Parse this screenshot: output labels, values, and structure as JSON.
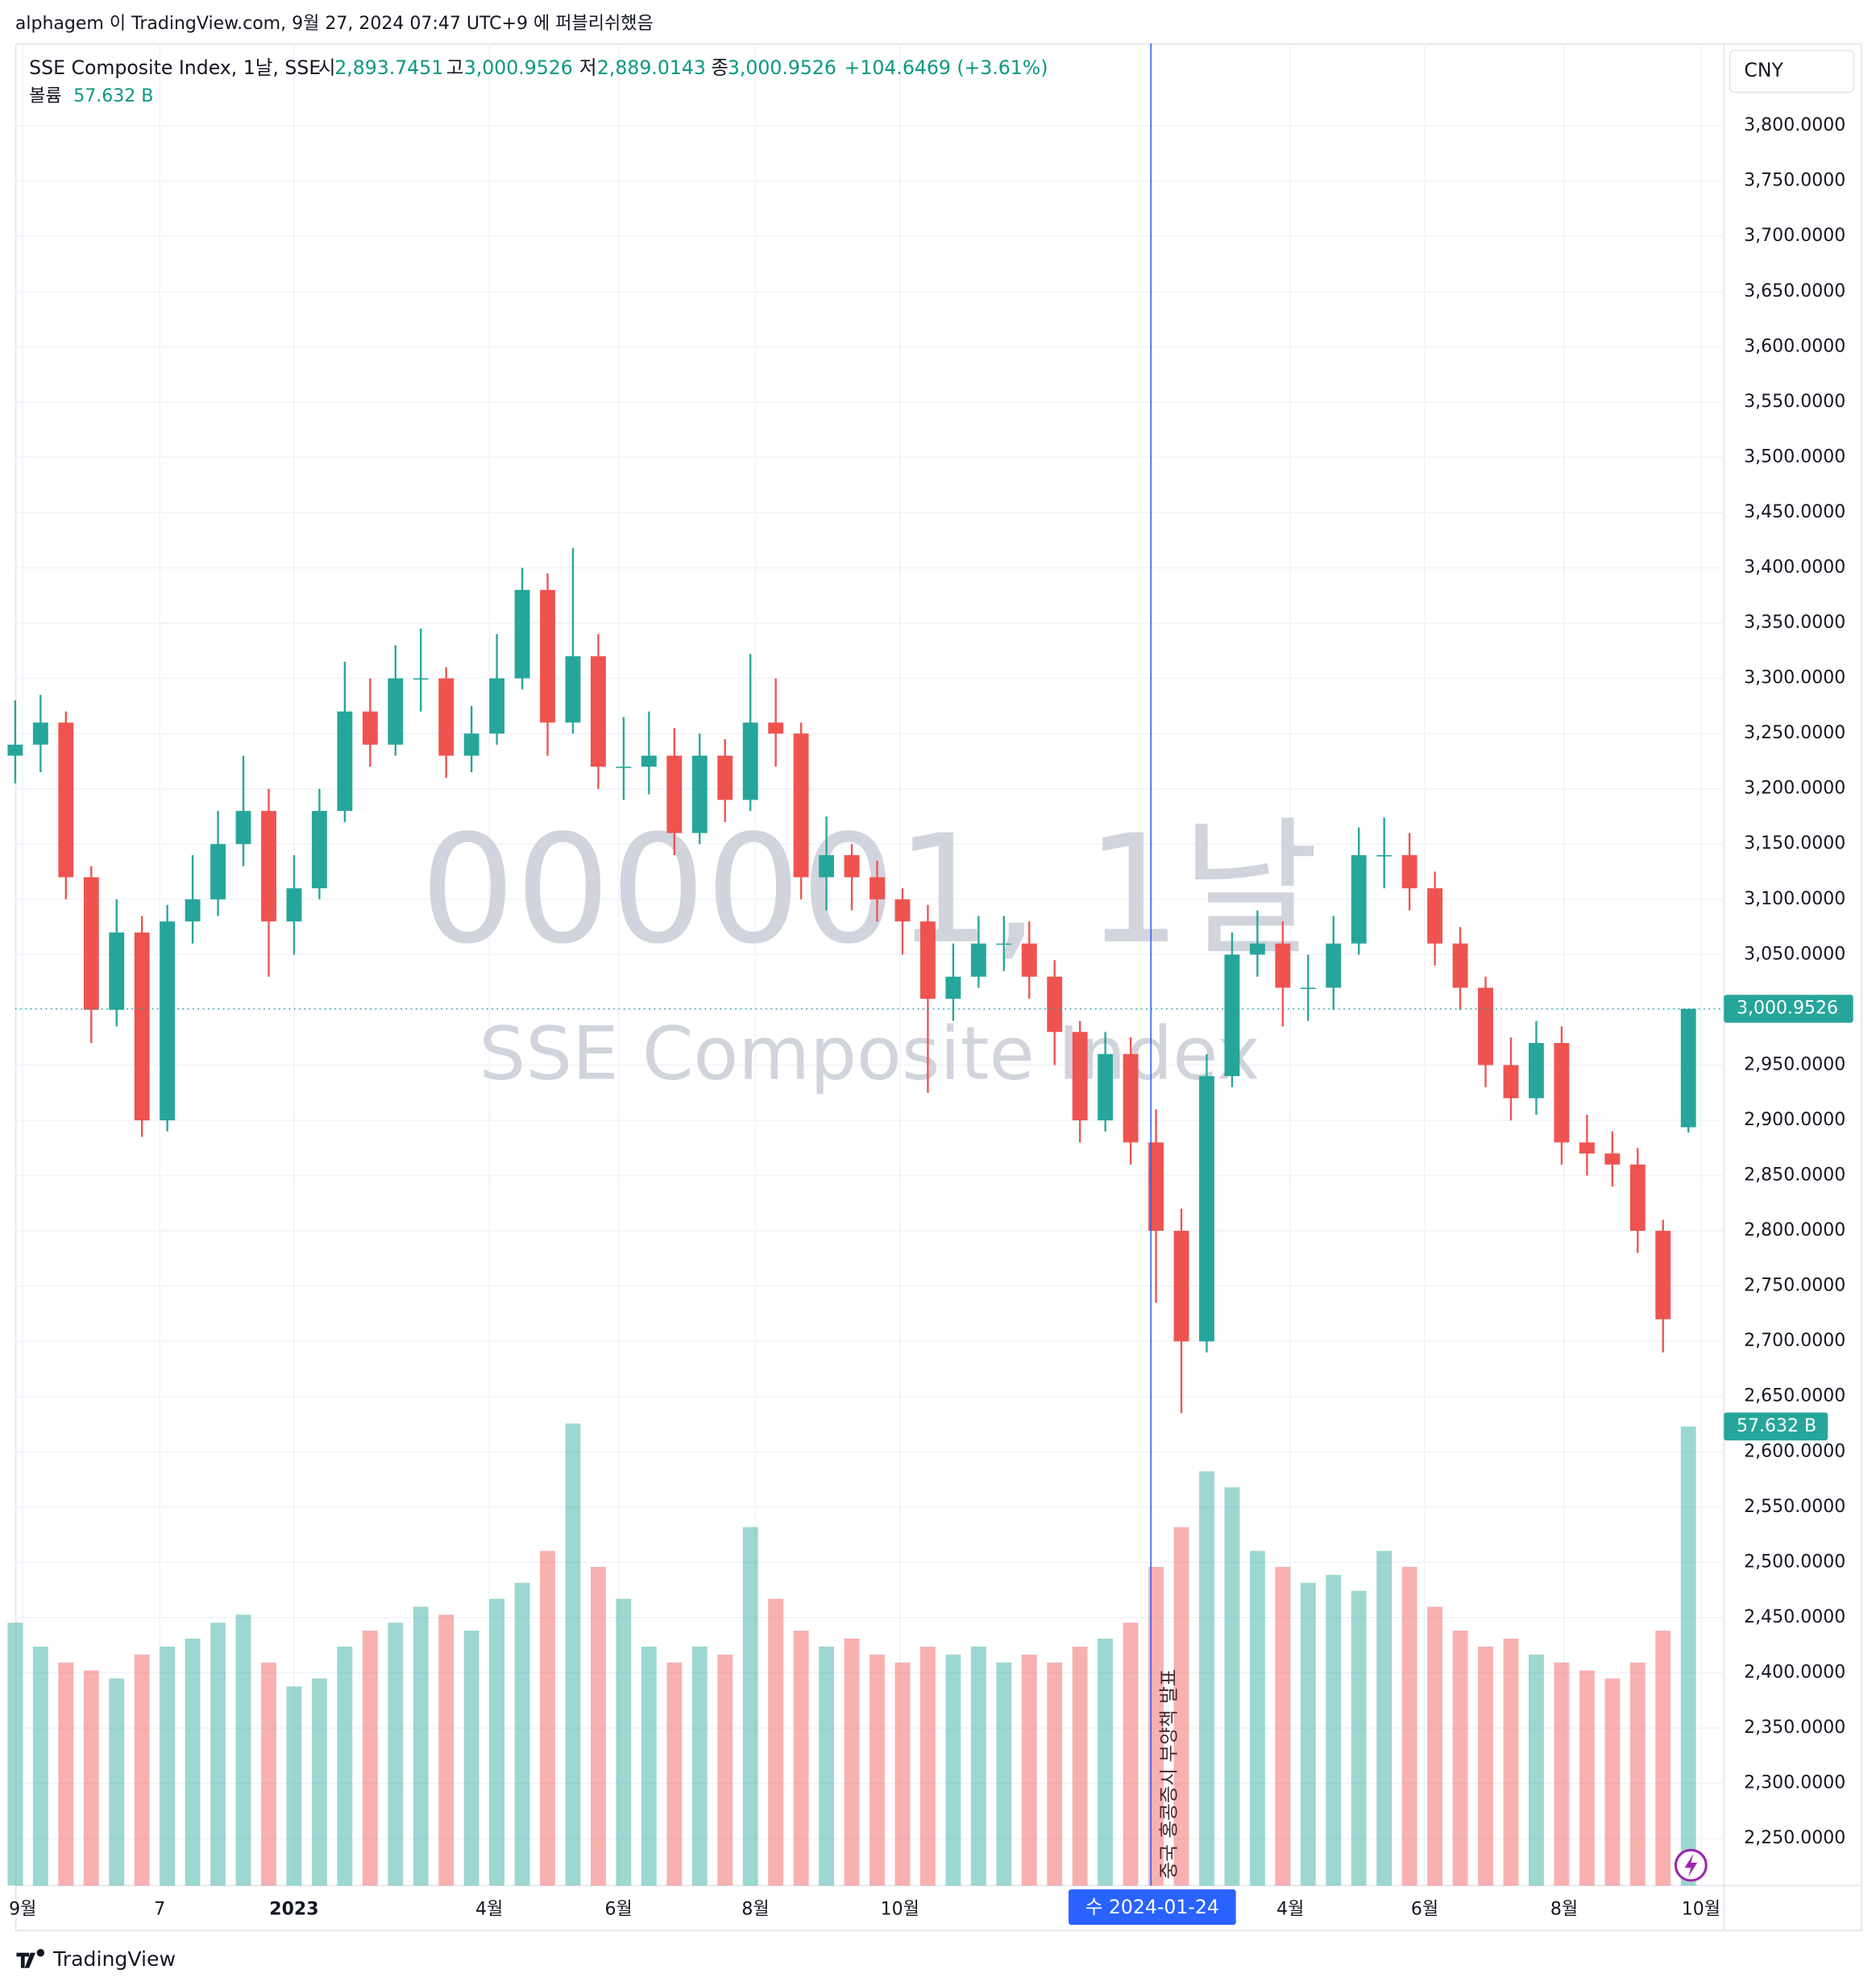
{
  "header": "alphagem 이 TradingView.com, 9월 27, 2024 07:47 UTC+9 에 퍼블리쉬했음",
  "footer": "TradingView",
  "currency": "CNY",
  "chart_data": {
    "type": "candlestick",
    "legend": {
      "symbol": "SSE Composite Index, 1날, SSE",
      "open_key": "시",
      "open": "2,893.7451",
      "high_key": "고",
      "high": "3,000.9526",
      "low_key": "저",
      "low": "2,889.0143",
      "close_key": "종",
      "close": "3,000.9526",
      "change": "+104.6469 (+3.61%)",
      "volume_key": "볼륨",
      "volume": "57.632 B"
    },
    "watermark": [
      "000001, 1날",
      "SSE Composite Index"
    ],
    "annotation": "중국 홍콩증시 부양책 발표",
    "crosshair": {
      "value": 44.8,
      "label": "수 2024-01-24"
    },
    "up_color": "#26a69a",
    "down_color": "#ef5350",
    "crosshair_color": "#2962ff",
    "grid": true,
    "ylim": [
      2207.5,
      3874.6
    ],
    "yticks": [
      {
        "value": 3800,
        "label": "3,800.0000"
      },
      {
        "value": 3750,
        "label": "3,750.0000"
      },
      {
        "value": 3700,
        "label": "3,700.0000"
      },
      {
        "value": 3650,
        "label": "3,650.0000"
      },
      {
        "value": 3600,
        "label": "3,600.0000"
      },
      {
        "value": 3550,
        "label": "3,550.0000"
      },
      {
        "value": 3500,
        "label": "3,500.0000"
      },
      {
        "value": 3450,
        "label": "3,450.0000"
      },
      {
        "value": 3400,
        "label": "3,400.0000"
      },
      {
        "value": 3350,
        "label": "3,350.0000"
      },
      {
        "value": 3300,
        "label": "3,300.0000"
      },
      {
        "value": 3250,
        "label": "3,250.0000"
      },
      {
        "value": 3200,
        "label": "3,200.0000"
      },
      {
        "value": 3150,
        "label": "3,150.0000"
      },
      {
        "value": 3100,
        "label": "3,100.0000"
      },
      {
        "value": 3050,
        "label": "3,050.0000"
      },
      {
        "value": 3000,
        "label": "3,000.0000"
      },
      {
        "value": 2950,
        "label": "2,950.0000"
      },
      {
        "value": 2900,
        "label": "2,900.0000"
      },
      {
        "value": 2850,
        "label": "2,850.0000"
      },
      {
        "value": 2800,
        "label": "2,800.0000"
      },
      {
        "value": 2750,
        "label": "2,750.0000"
      },
      {
        "value": 2700,
        "label": "2,700.0000"
      },
      {
        "value": 2650,
        "label": "2,650.0000"
      },
      {
        "value": 2600,
        "label": "2,600.0000"
      },
      {
        "value": 2550,
        "label": "2,550.0000"
      },
      {
        "value": 2500,
        "label": "2,500.0000"
      },
      {
        "value": 2450,
        "label": "2,450.0000"
      },
      {
        "value": 2400,
        "label": "2,400.0000"
      },
      {
        "value": 2350,
        "label": "2,350.0000"
      },
      {
        "value": 2300,
        "label": "2,300.0000"
      },
      {
        "value": 2250,
        "label": "2,250.0000"
      }
    ],
    "xticks": [
      {
        "value": 0.3,
        "label": "9월"
      },
      {
        "value": 5.7,
        "label": "7"
      },
      {
        "value": 11,
        "label": "2023"
      },
      {
        "value": 18.7,
        "label": "4월"
      },
      {
        "value": 23.8,
        "label": "6월"
      },
      {
        "value": 29.2,
        "label": "8월"
      },
      {
        "value": 34.9,
        "label": "10월"
      },
      {
        "value": 50.3,
        "label": "4월"
      },
      {
        "value": 55.6,
        "label": "6월"
      },
      {
        "value": 61.1,
        "label": "8월"
      },
      {
        "value": 66.5,
        "label": "10월"
      }
    ],
    "candles": {
      "open": [
        3230,
        3240,
        3260,
        3120,
        3000,
        3070,
        2900,
        3080,
        3100,
        3150,
        3180,
        3080,
        3110,
        3180,
        3270,
        3240,
        3300,
        3300,
        3230,
        3250,
        3300,
        3380,
        3260,
        3320,
        3220,
        3220,
        3230,
        3160,
        3230,
        3190,
        3260,
        3250,
        3120,
        3140,
        3120,
        3100,
        3080,
        3010,
        3030,
        3060,
        3060,
        3030,
        2980,
        2900,
        2960,
        2880,
        2800,
        2700,
        2940,
        3050,
        3060,
        3020,
        3020,
        3060,
        3140,
        3140,
        3110,
        3060,
        3020,
        2950,
        2920,
        2970,
        2880,
        2870,
        2860,
        2800,
        2893.7451
      ],
      "high": [
        3280,
        3285,
        3270,
        3130,
        3100,
        3085,
        3095,
        3140,
        3180,
        3230,
        3200,
        3140,
        3200,
        3315,
        3300,
        3330,
        3345,
        3310,
        3275,
        3340,
        3400,
        3395,
        3418,
        3340,
        3265,
        3270,
        3255,
        3250,
        3245,
        3322,
        3300,
        3260,
        3175,
        3150,
        3135,
        3110,
        3095,
        3060,
        3085,
        3085,
        3080,
        3045,
        2990,
        2980,
        2975,
        2910,
        2820,
        2960,
        3070,
        3090,
        3080,
        3050,
        3085,
        3165,
        3174,
        3160,
        3125,
        3075,
        3030,
        2975,
        2990,
        2985,
        2905,
        2890,
        2875,
        2810,
        3000.9526
      ],
      "low": [
        3205,
        3215,
        3100,
        2970,
        2985,
        2885,
        2890,
        3060,
        3085,
        3130,
        3030,
        3050,
        3100,
        3170,
        3220,
        3230,
        3270,
        3210,
        3215,
        3240,
        3290,
        3230,
        3250,
        3200,
        3190,
        3195,
        3140,
        3150,
        3170,
        3180,
        3220,
        3100,
        3090,
        3090,
        3080,
        3050,
        2925,
        2990,
        3020,
        3035,
        3010,
        2950,
        2880,
        2890,
        2860,
        2735,
        2635,
        2690,
        2930,
        3030,
        2985,
        2990,
        3000,
        3050,
        3110,
        3090,
        3040,
        3000,
        2930,
        2900,
        2905,
        2860,
        2850,
        2840,
        2780,
        2690,
        2889.0143
      ],
      "close": [
        3240,
        3260,
        3120,
        3000,
        3070,
        2900,
        3080,
        3100,
        3150,
        3180,
        3080,
        3110,
        3180,
        3270,
        3240,
        3300,
        3300,
        3230,
        3250,
        3300,
        3380,
        3260,
        3320,
        3220,
        3220,
        3230,
        3160,
        3230,
        3190,
        3260,
        3250,
        3120,
        3140,
        3120,
        3100,
        3080,
        3010,
        3030,
        3060,
        3060,
        3030,
        2980,
        2900,
        2960,
        2880,
        2800,
        2700,
        2940,
        3050,
        3060,
        3020,
        3020,
        3060,
        3140,
        3140,
        3110,
        3060,
        3020,
        2950,
        2920,
        2970,
        2880,
        2870,
        2860,
        2800,
        2720,
        3000.9526
      ],
      "last_label": "3,000.9526"
    },
    "y2lim": [
      0,
      60
    ],
    "volume": {
      "values": [
        33,
        30,
        28,
        27,
        26,
        29,
        30,
        31,
        33,
        34,
        28,
        25,
        26,
        30,
        32,
        33,
        35,
        34,
        32,
        36,
        38,
        42,
        58,
        40,
        36,
        30,
        28,
        30,
        29,
        45,
        36,
        32,
        30,
        31,
        29,
        28,
        30,
        29,
        30,
        28,
        29,
        28,
        30,
        31,
        33,
        40,
        45,
        52,
        50,
        42,
        40,
        38,
        39,
        37,
        42,
        40,
        35,
        32,
        30,
        31,
        29,
        28,
        27,
        26,
        28,
        32,
        57.632
      ],
      "last_label": "57.632 B"
    }
  }
}
